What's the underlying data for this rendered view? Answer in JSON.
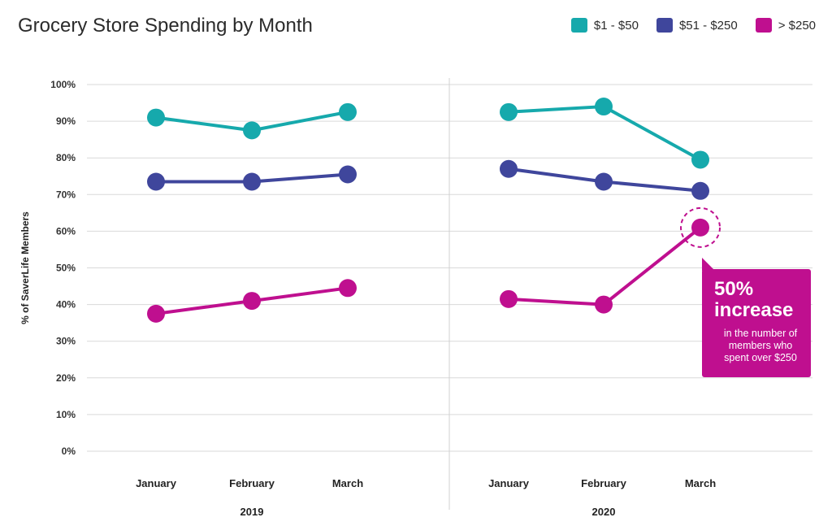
{
  "colors": {
    "teal": "#16a9ac",
    "navy": "#3f469c",
    "magenta": "#bf0f8f"
  },
  "chart_data": {
    "type": "line",
    "title": "Grocery Store Spending by Month",
    "ylabel": "% of SaverLife Members",
    "yticks": [
      "0%",
      "10%",
      "20%",
      "30%",
      "40%",
      "50%",
      "60%",
      "70%",
      "80%",
      "90%",
      "100%"
    ],
    "ylim": [
      0,
      100
    ],
    "grid": true,
    "legend_position": "top-right",
    "panels": [
      {
        "year": "2019",
        "categories": [
          "January",
          "February",
          "March"
        ],
        "series": [
          {
            "name": "$1 - $50",
            "color": "#16a9ac",
            "values": [
              91,
              87.5,
              92.5
            ]
          },
          {
            "name": "$51 - $250",
            "color": "#3f469c",
            "values": [
              73.5,
              73.5,
              75.5
            ]
          },
          {
            "name": "> $250",
            "color": "#bf0f8f",
            "values": [
              37.5,
              41,
              44.5
            ]
          }
        ]
      },
      {
        "year": "2020",
        "categories": [
          "January",
          "February",
          "March"
        ],
        "series": [
          {
            "name": "$1 - $50",
            "color": "#16a9ac",
            "values": [
              92.5,
              94,
              79.5
            ]
          },
          {
            "name": "$51 - $250",
            "color": "#3f469c",
            "values": [
              77,
              73.5,
              71
            ]
          },
          {
            "name": "> $250",
            "color": "#bf0f8f",
            "values": [
              41.5,
              40,
              61
            ]
          }
        ]
      }
    ],
    "annotation": {
      "headline": "50% increase",
      "text": "in the number of members who spent over $250"
    }
  }
}
